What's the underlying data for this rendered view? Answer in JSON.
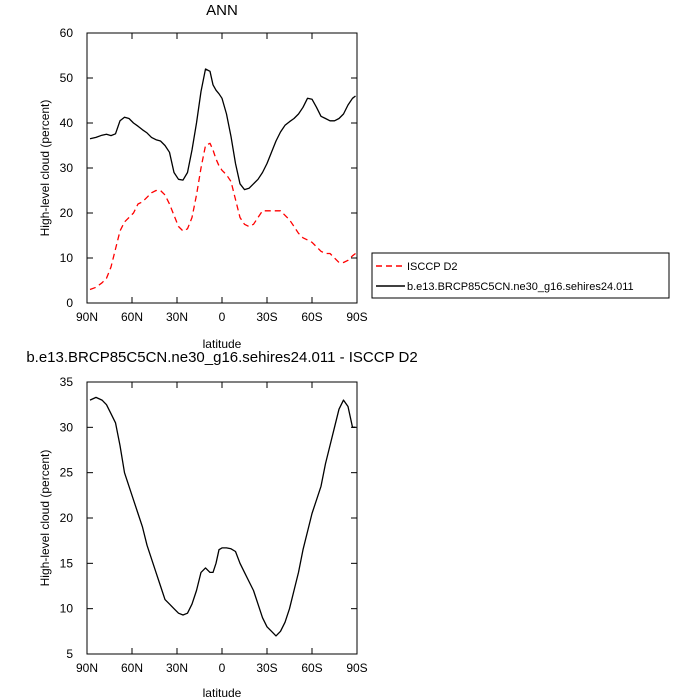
{
  "chart_data": [
    {
      "type": "line",
      "title": "ANN",
      "xlabel": "latitude",
      "ylabel": "High-level cloud (percent)",
      "xlim": [
        90,
        -90
      ],
      "ylim": [
        0,
        60
      ],
      "x_ticks": [
        "90N",
        "60N",
        "30N",
        "0",
        "30S",
        "60S",
        "90S"
      ],
      "y_ticks": [
        "0",
        "10",
        "20",
        "30",
        "40",
        "50",
        "60"
      ],
      "legend_position": "right",
      "series": [
        {
          "name": "ISCCP D2",
          "color": "#ff0000",
          "dash": true,
          "x": [
            88,
            84,
            80,
            77,
            74,
            71,
            68,
            65,
            62,
            59,
            56,
            53,
            50,
            47,
            44,
            41,
            38,
            35,
            32,
            29,
            26,
            23,
            20,
            17,
            14,
            11,
            8,
            6,
            4,
            2,
            0,
            -3,
            -6,
            -9,
            -12,
            -15,
            -18,
            -21,
            -24,
            -27,
            -30,
            -33,
            -36,
            -39,
            -42,
            -45,
            -48,
            -51,
            -54,
            -57,
            -60,
            -63,
            -66,
            -69,
            -72,
            -75,
            -78,
            -81,
            -84,
            -87,
            -89
          ],
          "y": [
            3,
            3.5,
            4.5,
            5.5,
            8,
            12,
            16,
            18,
            19,
            20,
            22,
            22.5,
            23.5,
            24.5,
            25,
            25,
            24,
            22,
            19.5,
            17,
            16,
            16.5,
            19,
            24,
            30,
            35,
            35.5,
            34,
            32,
            30.5,
            29.5,
            28.5,
            27,
            23,
            19,
            17.5,
            17,
            17.5,
            19,
            20.5,
            20.5,
            20.5,
            20.5,
            20.5,
            19.5,
            18.5,
            17,
            15.5,
            14.5,
            14,
            13.5,
            12.5,
            11.5,
            11,
            11,
            10,
            9,
            9,
            9.5,
            10.5,
            11
          ]
        },
        {
          "name": "b.e13.BRCP85C5CN.ne30_g16.sehires24.011",
          "color": "#000000",
          "dash": false,
          "x": [
            88,
            84,
            80,
            77,
            74,
            71,
            68,
            65,
            62,
            59,
            56,
            53,
            50,
            47,
            44,
            41,
            38,
            35,
            32,
            29,
            26,
            23,
            20,
            17,
            14,
            11,
            8,
            6,
            4,
            2,
            0,
            -3,
            -6,
            -9,
            -12,
            -15,
            -18,
            -21,
            -24,
            -27,
            -30,
            -33,
            -36,
            -39,
            -42,
            -45,
            -48,
            -51,
            -54,
            -57,
            -60,
            -63,
            -66,
            -69,
            -72,
            -75,
            -78,
            -81,
            -84,
            -87,
            -89
          ],
          "y": [
            36.5,
            36.8,
            37.3,
            37.5,
            37.2,
            37.6,
            40.5,
            41.3,
            41,
            40,
            39.3,
            38.5,
            37.8,
            36.8,
            36.3,
            36,
            35,
            33.5,
            29,
            27.5,
            27.3,
            29,
            34,
            40,
            47,
            52,
            51.5,
            48.5,
            47.3,
            46.5,
            45.5,
            42,
            37,
            31,
            26.5,
            25.2,
            25.5,
            26.5,
            27.5,
            29,
            31,
            33.5,
            36,
            38,
            39.5,
            40.3,
            41,
            42,
            43.5,
            45.5,
            45.3,
            43.5,
            41.5,
            41,
            40.5,
            40.5,
            41,
            42,
            44,
            45.5,
            46
          ]
        }
      ]
    },
    {
      "type": "line",
      "title": "b.e13.BRCP85C5CN.ne30_g16.sehires24.011 - ISCCP D2",
      "xlabel": "latitude",
      "ylabel": "High-level cloud (percent)",
      "xlim": [
        90,
        -90
      ],
      "ylim": [
        5,
        35
      ],
      "x_ticks": [
        "90N",
        "60N",
        "30N",
        "0",
        "30S",
        "60S",
        "90S"
      ],
      "y_ticks": [
        "5",
        "10",
        "15",
        "20",
        "25",
        "30",
        "35"
      ],
      "series": [
        {
          "color": "#000000",
          "x": [
            88,
            84,
            80,
            77,
            74,
            71,
            68,
            65,
            62,
            59,
            56,
            53,
            50,
            47,
            44,
            41,
            38,
            35,
            32,
            29,
            26,
            23,
            20,
            17,
            14,
            11,
            8,
            6,
            4,
            2,
            0,
            -3,
            -6,
            -9,
            -12,
            -15,
            -18,
            -21,
            -24,
            -27,
            -30,
            -33,
            -36,
            -39,
            -42,
            -45,
            -48,
            -51,
            -54,
            -57,
            -60,
            -63,
            -66,
            -69,
            -72,
            -75,
            -78,
            -81,
            -84,
            -87,
            -89
          ],
          "y": [
            33,
            33.3,
            33,
            32.5,
            31.5,
            30.5,
            28,
            25,
            23.5,
            22,
            20.5,
            19,
            17,
            15.5,
            14,
            12.5,
            11,
            10.5,
            10,
            9.5,
            9.3,
            9.5,
            10.5,
            12,
            14,
            14.5,
            14,
            14,
            15,
            16.5,
            16.7,
            16.7,
            16.6,
            16.3,
            15,
            14,
            13,
            12,
            10.5,
            9,
            8,
            7.5,
            7,
            7.5,
            8.5,
            10,
            12,
            14,
            16.5,
            18.5,
            20.5,
            22,
            23.5,
            26,
            28,
            30,
            32,
            33,
            32.3,
            30,
            30
          ]
        }
      ]
    }
  ]
}
